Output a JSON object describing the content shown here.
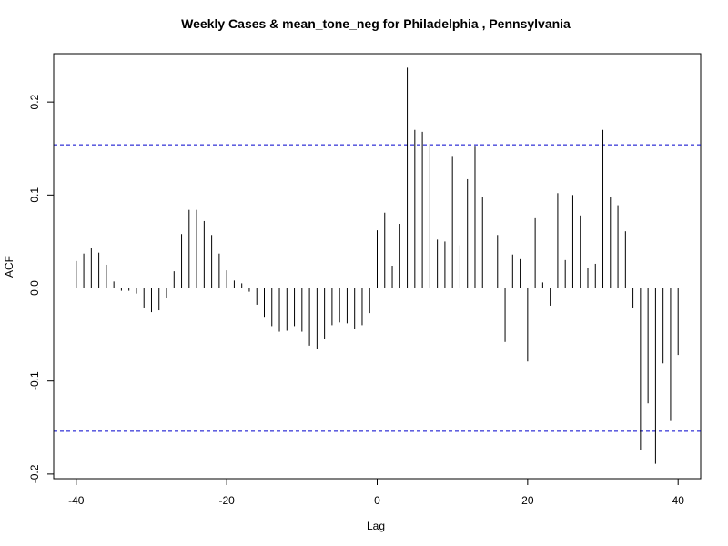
{
  "chart_data": {
    "type": "bar",
    "title": "Weekly Cases & mean_tone_neg for Philadelphia , Pennsylvania",
    "xlabel": "Lag",
    "ylabel": "ACF",
    "xlim": [
      -43,
      43
    ],
    "ylim": [
      -0.205,
      0.252
    ],
    "x_ticks": [
      -40,
      -20,
      0,
      20,
      40
    ],
    "y_ticks": [
      -0.2,
      -0.1,
      0.0,
      0.1,
      0.2
    ],
    "x_tick_labels": [
      "-40",
      "-20",
      "0",
      "20",
      "40"
    ],
    "y_tick_labels": [
      "-0.2",
      "-0.1",
      "0.0",
      "0.1",
      "0.2"
    ],
    "confidence_limits": [
      0.154,
      -0.154
    ],
    "confidence_color": "#0000cc",
    "bar_color": "#000000",
    "lags": [
      -40,
      -39,
      -38,
      -37,
      -36,
      -35,
      -34,
      -33,
      -32,
      -31,
      -30,
      -29,
      -28,
      -27,
      -26,
      -25,
      -24,
      -23,
      -22,
      -21,
      -20,
      -19,
      -18,
      -17,
      -16,
      -15,
      -14,
      -13,
      -12,
      -11,
      -10,
      -9,
      -8,
      -7,
      -6,
      -5,
      -4,
      -3,
      -2,
      -1,
      0,
      1,
      2,
      3,
      4,
      5,
      6,
      7,
      8,
      9,
      10,
      11,
      12,
      13,
      14,
      15,
      16,
      17,
      18,
      19,
      20,
      21,
      22,
      23,
      24,
      25,
      26,
      27,
      28,
      29,
      30,
      31,
      32,
      33,
      34,
      35,
      36,
      37,
      38,
      39,
      40
    ],
    "values": [
      0.029,
      0.037,
      0.043,
      0.038,
      0.025,
      0.007,
      -0.003,
      -0.003,
      -0.006,
      -0.021,
      -0.026,
      -0.024,
      -0.011,
      0.018,
      0.058,
      0.084,
      0.084,
      0.072,
      0.057,
      0.037,
      0.019,
      0.008,
      0.005,
      -0.004,
      -0.018,
      -0.031,
      -0.041,
      -0.047,
      -0.046,
      -0.041,
      -0.047,
      -0.062,
      -0.066,
      -0.055,
      -0.04,
      -0.037,
      -0.038,
      -0.044,
      -0.04,
      -0.027,
      0.062,
      0.081,
      0.024,
      0.069,
      0.237,
      0.17,
      0.168,
      0.155,
      0.052,
      0.05,
      0.142,
      0.046,
      0.117,
      0.153,
      0.098,
      0.076,
      0.057,
      -0.058,
      0.036,
      0.031,
      -0.079,
      0.075,
      0.006,
      -0.019,
      0.102,
      0.03,
      0.1,
      0.078,
      0.022,
      0.026,
      0.17,
      0.098,
      0.089,
      0.061,
      -0.021,
      -0.174,
      -0.124,
      -0.189,
      -0.081,
      -0.143,
      -0.072
    ]
  }
}
